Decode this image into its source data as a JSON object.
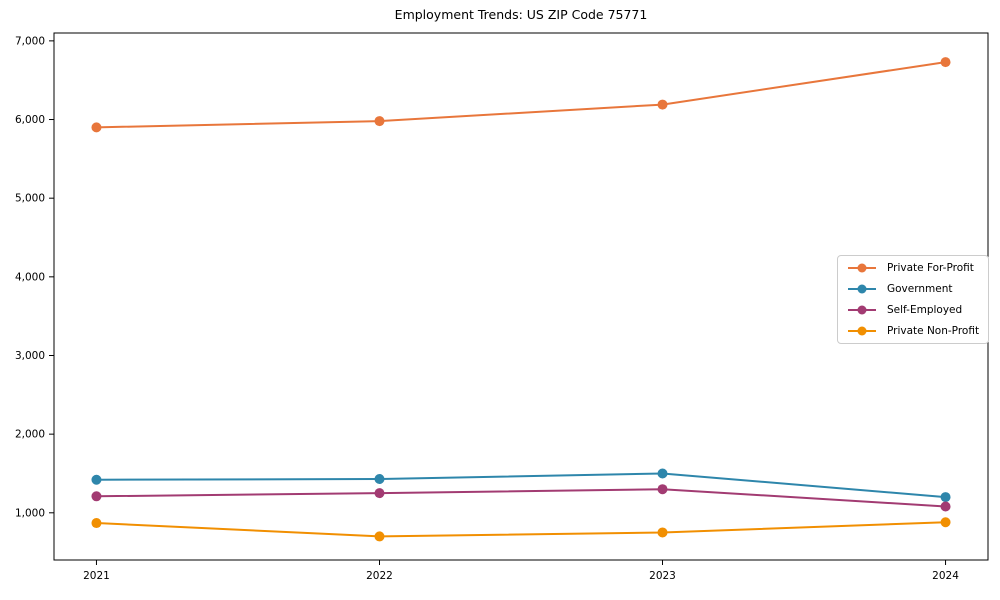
{
  "chart_data": {
    "type": "line",
    "title": "Employment Trends: US ZIP Code 75771",
    "xlabel": "",
    "ylabel": "",
    "categories": [
      "2021",
      "2022",
      "2023",
      "2024"
    ],
    "series": [
      {
        "name": "Private For-Profit",
        "color": "#E8763B",
        "values": [
          5900,
          5980,
          6190,
          6730
        ]
      },
      {
        "name": "Government",
        "color": "#2E86AB",
        "values": [
          1420,
          1430,
          1500,
          1200
        ]
      },
      {
        "name": "Self-Employed",
        "color": "#A23B72",
        "values": [
          1210,
          1250,
          1300,
          1080
        ]
      },
      {
        "name": "Private Non-Profit",
        "color": "#F18F01",
        "values": [
          870,
          700,
          750,
          880
        ]
      }
    ],
    "ylim": [
      400,
      7100
    ],
    "yticks": [
      1000,
      2000,
      3000,
      4000,
      5000,
      6000,
      7000
    ],
    "ytick_labels": [
      "1,000",
      "2,000",
      "3,000",
      "4,000",
      "5,000",
      "6,000",
      "7,000"
    ],
    "grid": false,
    "legend_position": "center-right",
    "marker": "circle",
    "axis_color": "#000000",
    "text_color": "#000000",
    "legend_border_color": "#cccccc"
  }
}
